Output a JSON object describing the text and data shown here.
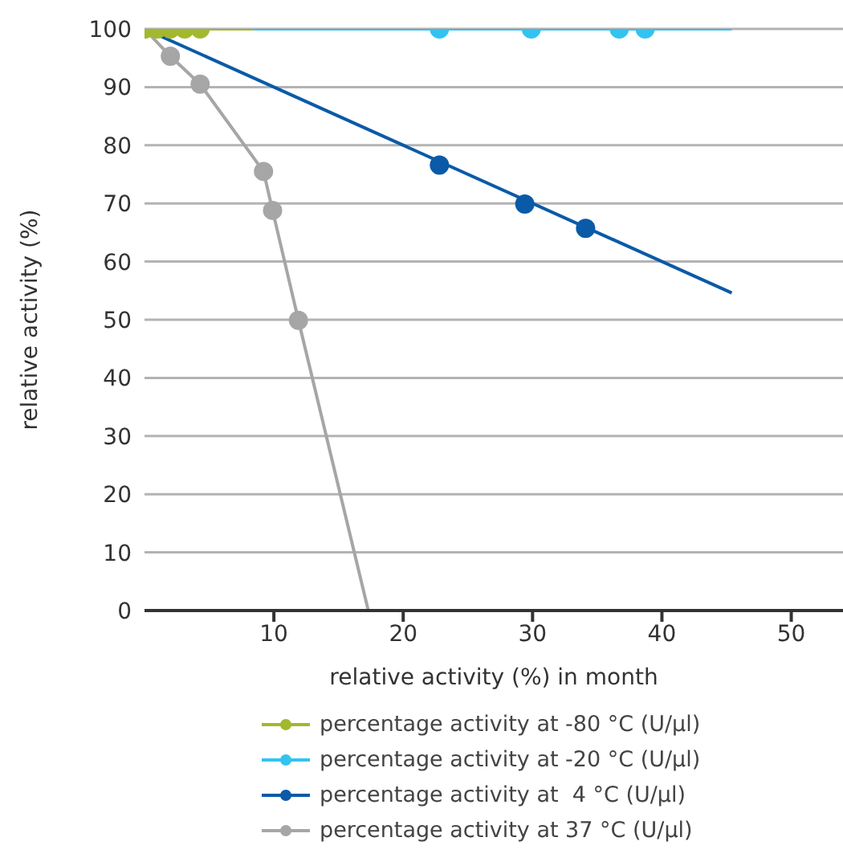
{
  "chart_data": {
    "type": "line",
    "xlabel": "relative activity (%) in month",
    "ylabel": "relative activity (%)",
    "xlim": [
      0,
      54
    ],
    "xticks": [
      10,
      20,
      30,
      40,
      50
    ],
    "ylim": [
      0,
      100
    ],
    "yticks": [
      0,
      10,
      20,
      30,
      40,
      50,
      60,
      70,
      80,
      90,
      100
    ],
    "grid": "y",
    "legend": "bottom",
    "series": [
      {
        "type": "line",
        "color": "#a6a6a6",
        "x": [
          11.9,
          17.3
        ],
        "values": [
          49.9,
          0
        ]
      },
      {
        "name": "percentage activity at 37 °C (U/µl)",
        "color": "#a6a6a6",
        "marker": "circle",
        "x": [
          0,
          2,
          4.3,
          9.2,
          9.9,
          11.9
        ],
        "values": [
          100,
          95.3,
          90.5,
          75.5,
          68.8,
          49.9
        ]
      },
      {
        "type": "line",
        "color": "#0a5aa8",
        "x": [
          0,
          45.4
        ],
        "values": [
          100,
          54.6
        ]
      },
      {
        "name": "percentage activity at  4 °C (U/µl)",
        "type": "scatter",
        "color": "#0a5aa8",
        "marker": "circle",
        "x": [
          22.8,
          29.4,
          34.1
        ],
        "values": [
          76.6,
          69.9,
          65.7
        ]
      },
      {
        "type": "line",
        "color": "#33c3f0",
        "x": [
          8.4,
          45.4
        ],
        "values": [
          100,
          100
        ]
      },
      {
        "name": "percentage activity at -20 °C (U/µl)",
        "type": "scatter",
        "color": "#33c3f0",
        "marker": "circle",
        "x": [
          22.8,
          29.9,
          36.7,
          38.7
        ],
        "values": [
          100,
          100,
          100,
          100
        ]
      },
      {
        "type": "line",
        "color": "#a3b82c",
        "x": [
          0,
          8.4
        ],
        "values": [
          100,
          100
        ]
      },
      {
        "name": "percentage activity at -80 °C (U/µl)",
        "type": "scatter",
        "color": "#a3b82c",
        "marker": "circle",
        "x": [
          0,
          1,
          2,
          3.1,
          4.3
        ],
        "values": [
          100,
          100,
          100,
          100,
          100
        ]
      }
    ]
  }
}
